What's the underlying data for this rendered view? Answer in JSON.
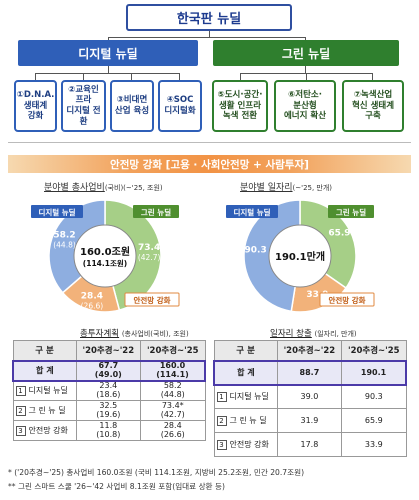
{
  "header": {
    "title": "한국판 뉴딜"
  },
  "digital": {
    "label": "디지털 뉴딜",
    "items": [
      {
        "num": "①",
        "line1": "D.N.A.",
        "line2": "생태계",
        "line3": "강화"
      },
      {
        "num": "②",
        "line1": "교육인프라",
        "line2": "디지털 전환",
        "line3": ""
      },
      {
        "num": "③",
        "line1": "비대면",
        "line2": "산업 육성",
        "line3": ""
      },
      {
        "num": "④",
        "line1": "SOC",
        "line2": "디지털화",
        "line3": ""
      }
    ]
  },
  "green": {
    "label": "그린 뉴딜",
    "items": [
      {
        "num": "⑤",
        "line1": "도시·공간·",
        "line2": "생활 인프라",
        "line3": "녹색 전환"
      },
      {
        "num": "⑥",
        "line1": "저탄소·",
        "line2": "분산형",
        "line3": "에너지 확산"
      },
      {
        "num": "⑦",
        "line1": "녹색산업",
        "line2": "혁신 생태계",
        "line3": "구축"
      }
    ]
  },
  "safety": {
    "label": "안전망 강화 [고용 · 사회안전망 + 사람투자]"
  },
  "chart_data": [
    {
      "type": "pie",
      "title_underlined": "분야별 총사업비",
      "title_suffix": "(국비)",
      "title_unit": "(~'25, 조원)",
      "center_value": "160.0조원",
      "center_sub": "(114.1조원)",
      "slices": [
        {
          "name": "그린 뉴딜",
          "value": 73.4,
          "sub": "(42.7)",
          "color": "#a6cf87"
        },
        {
          "name": "안전망 강화",
          "value": 28.4,
          "sub": "(26.6)",
          "color": "#f2b27a"
        },
        {
          "name": "디지털 뉴딜",
          "value": 58.2,
          "sub": "(44.8)",
          "color": "#8eaee0"
        }
      ]
    },
    {
      "type": "pie",
      "title_underlined": "분야별 일자리",
      "title_suffix": "",
      "title_unit": "(~'25, 만개)",
      "center_value": "190.1만개",
      "center_sub": "",
      "slices": [
        {
          "name": "그린 뉴딜",
          "value": 65.9,
          "sub": "",
          "color": "#a6cf87"
        },
        {
          "name": "안전망 강화",
          "value": 33.9,
          "sub": "",
          "color": "#f2b27a"
        },
        {
          "name": "디지털 뉴딜",
          "value": 90.3,
          "sub": "",
          "color": "#8eaee0"
        }
      ]
    }
  ],
  "invest_table": {
    "title": "총투자계획",
    "unit": "(총사업비(국비), 조원)",
    "headers": [
      "구 분",
      "'20추경~'22",
      "'20추경~'25"
    ],
    "total": {
      "label": "합 계",
      "v22": "67.7",
      "v22sub": "(49.0)",
      "v25": "160.0",
      "v25sub": "(114.1)"
    },
    "rows": [
      {
        "num": "1",
        "label": "디지털 뉴딜",
        "v22": "23.4",
        "v22sub": "(18.6)",
        "v25": "58.2",
        "v25sub": "(44.8)"
      },
      {
        "num": "2",
        "label": "그 린 뉴 딜",
        "v22": "32.5",
        "v22sub": "(19.6)",
        "v25": "73.4*",
        "v25sub": "(42.7)"
      },
      {
        "num": "3",
        "label": "안전망 강화",
        "v22": "11.8",
        "v22sub": "(10.8)",
        "v25": "28.4",
        "v25sub": "(26.6)"
      }
    ]
  },
  "jobs_table": {
    "title": "일자리 창출",
    "unit": "(일자리, 만개)",
    "headers": [
      "구 분",
      "'20추경~'22",
      "'20추경~'25"
    ],
    "total": {
      "label": "합 계",
      "v22": "88.7",
      "v25": "190.1"
    },
    "rows": [
      {
        "num": "1",
        "label": "디지털 뉴딜",
        "v22": "39.0",
        "v25": "90.3"
      },
      {
        "num": "2",
        "label": "그 린 뉴 딜",
        "v22": "31.9",
        "v25": "65.9"
      },
      {
        "num": "3",
        "label": "안전망 강화",
        "v22": "17.8",
        "v25": "33.9"
      }
    ]
  },
  "footnotes": {
    "f1": "* ('20추경~'25) 총사업비 160.0조원 (국비 114.1조원, 지방비 25.2조원, 민간 20.7조원)",
    "f2": "** 그린 스마트 스쿨 '26~'42 사업비 8.1조원 포함(임대료 상환 등)"
  }
}
